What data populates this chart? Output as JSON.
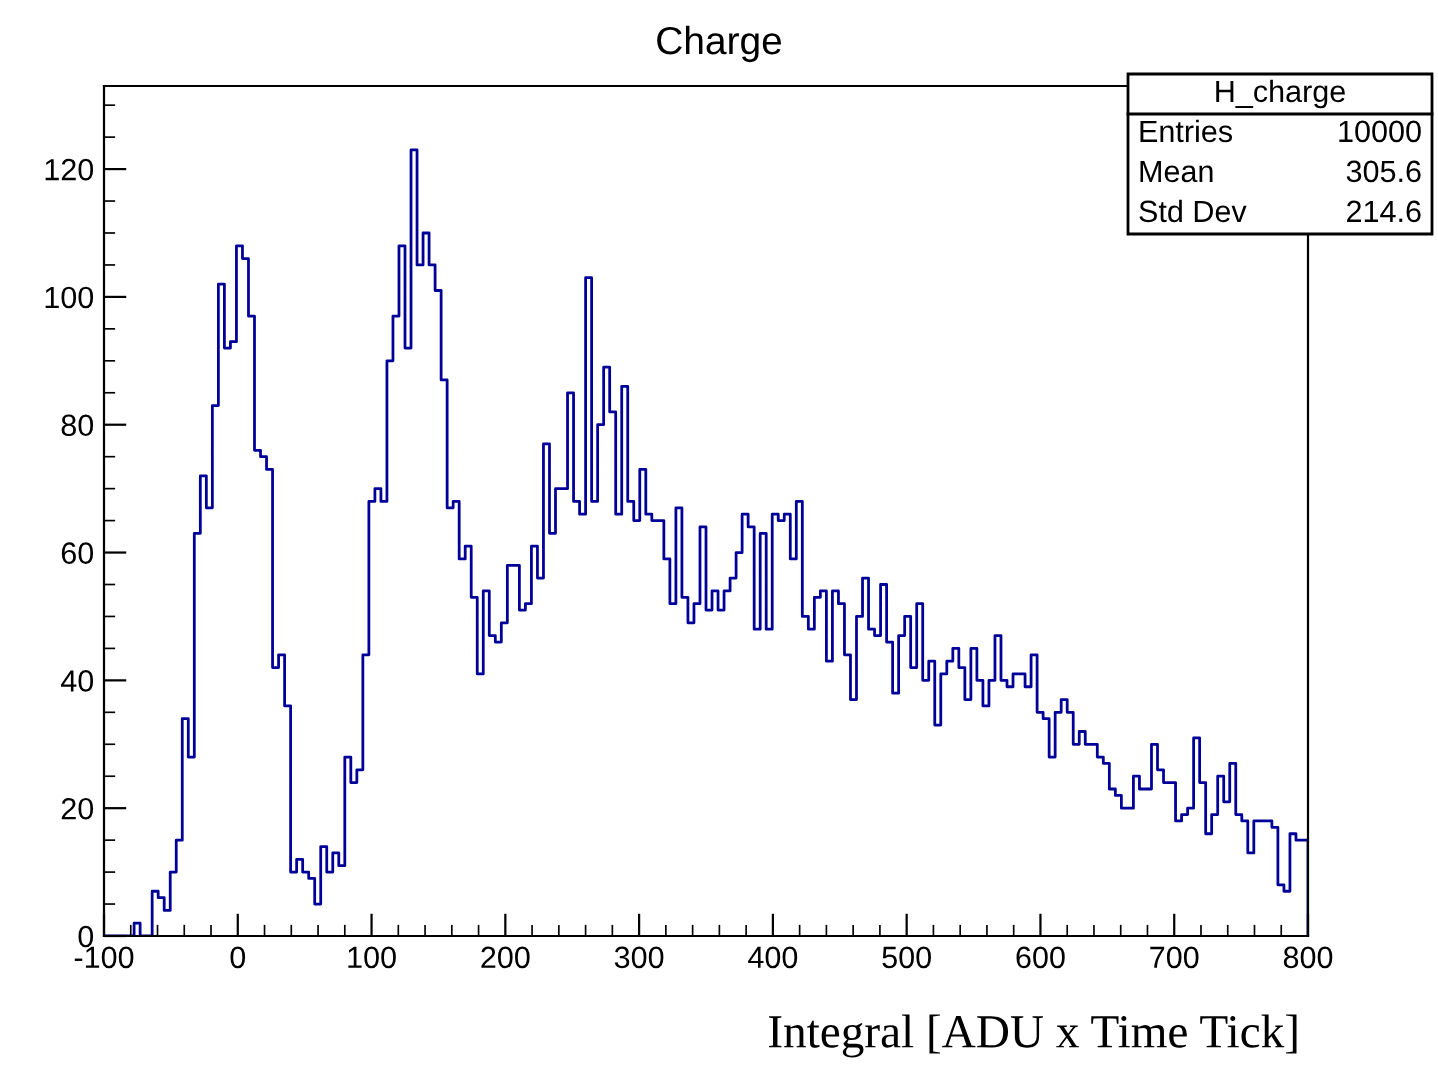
{
  "chart_data": {
    "type": "histogram",
    "title": "Charge",
    "xlabel": "Integral [ADU x Time Tick]",
    "bins": [
      -100,
      -95.5,
      -91,
      -86.5,
      -82,
      -77.5,
      -73,
      -68.5,
      -64,
      -59.5,
      -55,
      -50.5,
      -46,
      -41.5,
      -37,
      -32.5,
      -28,
      -23.5,
      -19,
      -14.5,
      -10,
      -5.5,
      -1,
      3.5,
      8,
      12.5,
      17,
      21.5,
      26,
      30.5,
      35,
      39.5,
      44,
      48.5,
      53,
      57.5,
      62,
      66.5,
      71,
      75.5,
      80,
      84.5,
      89,
      93.5,
      98,
      102.5,
      107,
      111.5,
      116,
      120.5,
      125,
      129.5,
      134,
      138.5,
      143,
      147.5,
      152,
      156.5,
      161,
      165.5,
      170,
      174.5,
      179,
      183.5,
      188,
      192.5,
      197,
      201.5,
      206,
      210.5,
      215,
      219.5,
      224,
      228.5,
      233,
      237.5,
      242,
      246.5,
      251,
      255.5,
      260,
      264.5,
      269,
      273.5,
      278,
      282.5,
      287,
      291.5,
      296,
      300.5,
      305,
      309.5,
      314,
      318.5,
      323,
      327.5,
      332,
      336.5,
      341,
      345.5,
      350,
      354.5,
      359,
      363.5,
      368,
      372.5,
      377,
      381.5,
      386,
      390.5,
      395,
      399.5,
      404,
      408.5,
      413,
      417.5,
      422,
      426.5,
      431,
      435.5,
      440,
      444.5,
      449,
      453.5,
      458,
      462.5,
      467,
      471.5,
      476,
      480.5,
      485,
      489.5,
      494,
      498.5,
      503,
      507.5,
      512,
      516.5,
      521,
      525.5,
      530,
      534.5,
      539,
      543.5,
      548,
      552.5,
      557,
      561.5,
      566,
      570.5,
      575,
      579.5,
      584,
      588.5,
      593,
      597.5,
      602,
      606.5,
      611,
      615.5,
      620,
      624.5,
      629,
      633.5,
      638,
      642.5,
      647,
      651.5,
      656,
      660.5,
      665,
      669.5,
      674,
      678.5,
      683,
      687.5,
      692,
      696.5,
      701,
      705.5,
      710,
      714.5,
      719,
      723.5,
      728,
      732.5,
      737,
      741.5,
      746,
      750.5,
      755,
      759.5,
      764,
      768.5,
      773,
      777.5,
      782,
      786.5,
      791,
      795.5,
      800
    ],
    "values": [
      0,
      0,
      0,
      0,
      0,
      2,
      0,
      0,
      7,
      6,
      4,
      10,
      15,
      34,
      28,
      63,
      72,
      67,
      83,
      102,
      92,
      93,
      108,
      106,
      97,
      76,
      75,
      73,
      42,
      44,
      36,
      10,
      12,
      10,
      9,
      5,
      14,
      10,
      13,
      11,
      28,
      24,
      26,
      44,
      68,
      70,
      68,
      90,
      97,
      108,
      92,
      123,
      105,
      110,
      105,
      101,
      87,
      67,
      68,
      59,
      61,
      53,
      41,
      54,
      47,
      46,
      49,
      58,
      58,
      51,
      52,
      61,
      56,
      77,
      63,
      70,
      70,
      85,
      68,
      66,
      103,
      68,
      80,
      89,
      82,
      66,
      86,
      68,
      65,
      73,
      66,
      65,
      65,
      59,
      52,
      67,
      53,
      49,
      52,
      64,
      51,
      54,
      51,
      54,
      56,
      60,
      66,
      64,
      48,
      63,
      48,
      66,
      65,
      66,
      59,
      68,
      50,
      48,
      53,
      54,
      43,
      54,
      52,
      44,
      37,
      50,
      56,
      48,
      47,
      55,
      46,
      38,
      47,
      50,
      42,
      52,
      40,
      43,
      33,
      41,
      43,
      45,
      42,
      37,
      45,
      40,
      36,
      40,
      47,
      40,
      39,
      41,
      41,
      39,
      44,
      35,
      34,
      28,
      35,
      37,
      35,
      30,
      32,
      30,
      30,
      28,
      27,
      23,
      22,
      20,
      20,
      25,
      23,
      23,
      30,
      26,
      24,
      24,
      18,
      19,
      20,
      31,
      24,
      16,
      19,
      25,
      21,
      27,
      19,
      18,
      13,
      18,
      18,
      18,
      17,
      8,
      7,
      16,
      15,
      15
    ],
    "color": "#000099",
    "xlim": [
      -100,
      800
    ],
    "xticks": [
      -100,
      0,
      100,
      200,
      300,
      400,
      500,
      600,
      700,
      800
    ],
    "ylim": [
      0,
      133
    ],
    "yticks": [
      0,
      20,
      40,
      60,
      80,
      100,
      120
    ],
    "grid": false,
    "annotations": [
      "H_charge",
      "Entries",
      "10000",
      "Mean",
      "305.6",
      "Std Dev",
      "214.6"
    ]
  }
}
